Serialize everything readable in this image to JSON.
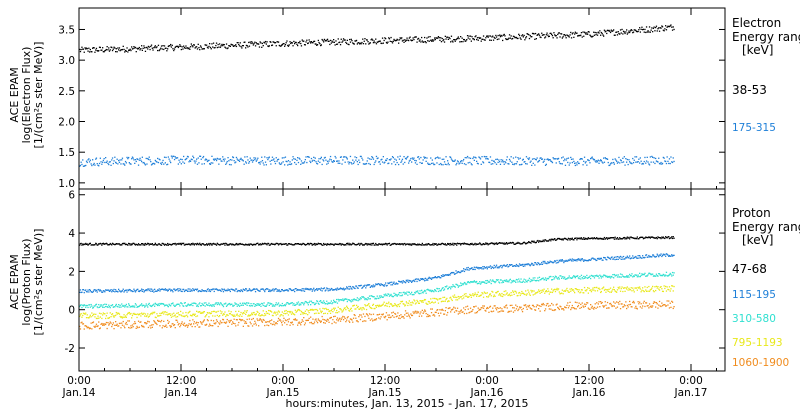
{
  "chart_data": {
    "type": "scatter",
    "xlabel": "hours:minutes, Jan. 13, 2015 - Jan. 17, 2015",
    "x_ticks": [
      {
        "time": "0:00",
        "date": "Jan.14",
        "hour": 0
      },
      {
        "time": "12:00",
        "date": "Jan.14",
        "hour": 12
      },
      {
        "time": "0:00",
        "date": "Jan.15",
        "hour": 24
      },
      {
        "time": "12:00",
        "date": "Jan.15",
        "hour": 36
      },
      {
        "time": "0:00",
        "date": "Jan.16",
        "hour": 48
      },
      {
        "time": "12:00",
        "date": "Jan.16",
        "hour": 60
      },
      {
        "time": "0:00",
        "date": "Jan.17",
        "hour": 72
      }
    ],
    "xlim_hours_from_jan14": [
      0,
      76
    ],
    "panels": [
      {
        "name": "electron",
        "ylabel_lines": [
          "ACE EPAM",
          "log(Electron Flux)",
          "[1/(cm²s ster MeV)]"
        ],
        "ylim": [
          0.9,
          3.85
        ],
        "yticks": [
          "1.0",
          "1.5",
          "2.0",
          "2.5",
          "3.0",
          "3.5"
        ],
        "legend_title": [
          "Electron",
          "Energy ranges",
          "[keV]"
        ],
        "series": [
          {
            "name": "38-53",
            "color": "#000000",
            "x_hours": [
              0,
              12,
              24,
              36,
              48,
              60,
              70
            ],
            "y": [
              3.17,
              3.22,
              3.28,
              3.33,
              3.37,
              3.43,
              3.55
            ],
            "scatter": 0.05
          },
          {
            "name": "175-315",
            "color": "#1e7fd8",
            "x_hours": [
              0,
              12,
              24,
              36,
              48,
              60,
              70
            ],
            "y": [
              1.35,
              1.38,
              1.37,
              1.38,
              1.37,
              1.36,
              1.38
            ],
            "scatter": 0.07
          }
        ]
      },
      {
        "name": "proton",
        "ylabel_lines": [
          "ACE EPAM",
          "log(Proton Flux)",
          "[1/(cm²s ster MeV)]"
        ],
        "ylim": [
          -3.2,
          6.3
        ],
        "yticks": [
          "-2",
          "0",
          "2",
          "4",
          "6"
        ],
        "legend_title": [
          "Proton",
          "Energy ranges",
          "[keV]"
        ],
        "series": [
          {
            "name": "47-68",
            "color": "#000000",
            "x_hours": [
              0,
              12,
              24,
              36,
              44,
              52,
              56,
              60,
              70
            ],
            "y": [
              3.45,
              3.45,
              3.45,
              3.45,
              3.45,
              3.5,
              3.7,
              3.75,
              3.8
            ],
            "scatter": 0.05
          },
          {
            "name": "115-195",
            "color": "#1e7fd8",
            "x_hours": [
              0,
              12,
              24,
              30,
              36,
              42,
              46,
              52,
              56,
              60,
              70
            ],
            "y": [
              1.0,
              1.05,
              1.05,
              1.1,
              1.35,
              1.7,
              2.2,
              2.35,
              2.55,
              2.65,
              2.9
            ],
            "scatter": 0.08
          },
          {
            "name": "310-580",
            "color": "#30e0d0",
            "x_hours": [
              0,
              12,
              24,
              30,
              36,
              42,
              46,
              52,
              56,
              60,
              70
            ],
            "y": [
              0.2,
              0.3,
              0.3,
              0.45,
              0.75,
              1.05,
              1.45,
              1.55,
              1.7,
              1.75,
              1.9
            ],
            "scatter": 0.1
          },
          {
            "name": "795-1193",
            "color": "#e8e81a",
            "x_hours": [
              0,
              12,
              24,
              30,
              36,
              42,
              46,
              52,
              56,
              60,
              70
            ],
            "y": [
              -0.3,
              -0.2,
              -0.15,
              0.0,
              0.3,
              0.5,
              0.8,
              0.9,
              1.0,
              1.05,
              1.15
            ],
            "scatter": 0.15
          },
          {
            "name": "1060-1900",
            "color": "#f08c1e",
            "x_hours": [
              0,
              12,
              24,
              30,
              36,
              42,
              46,
              52,
              56,
              60,
              70
            ],
            "y": [
              -0.8,
              -0.7,
              -0.6,
              -0.5,
              -0.3,
              -0.1,
              0.05,
              0.1,
              0.2,
              0.25,
              0.3
            ],
            "scatter": 0.2
          }
        ]
      }
    ]
  }
}
